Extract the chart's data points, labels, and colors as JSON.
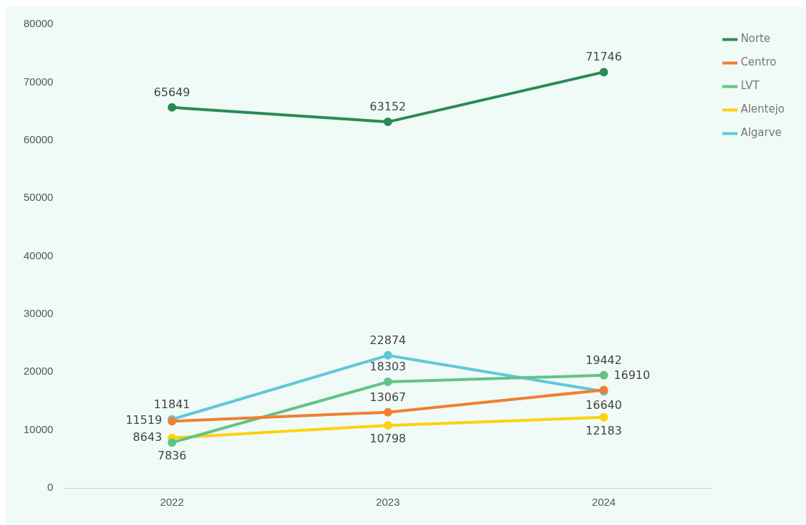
{
  "chart_data": {
    "type": "line",
    "categories": [
      "2022",
      "2023",
      "2024"
    ],
    "series": [
      {
        "name": "Norte",
        "color": "#2a8a57",
        "values": [
          65649,
          63152,
          71746
        ]
      },
      {
        "name": "Centro",
        "color": "#f07f32",
        "values": [
          11519,
          13067,
          16910
        ]
      },
      {
        "name": "LVT",
        "color": "#62c387",
        "values": [
          7836,
          18303,
          19442
        ]
      },
      {
        "name": "Alentejo",
        "color": "#ffd10a",
        "values": [
          8643,
          10798,
          12183
        ]
      },
      {
        "name": "Algarve",
        "color": "#5ec8d8",
        "values": [
          11841,
          22874,
          16640
        ]
      }
    ],
    "ylim": [
      0,
      80000
    ],
    "yticks": [
      0,
      10000,
      20000,
      30000,
      40000,
      50000,
      60000,
      70000,
      80000
    ],
    "grid": false,
    "legend": "top right",
    "marker": "circle",
    "line_style": "solid",
    "data_labels": true
  }
}
